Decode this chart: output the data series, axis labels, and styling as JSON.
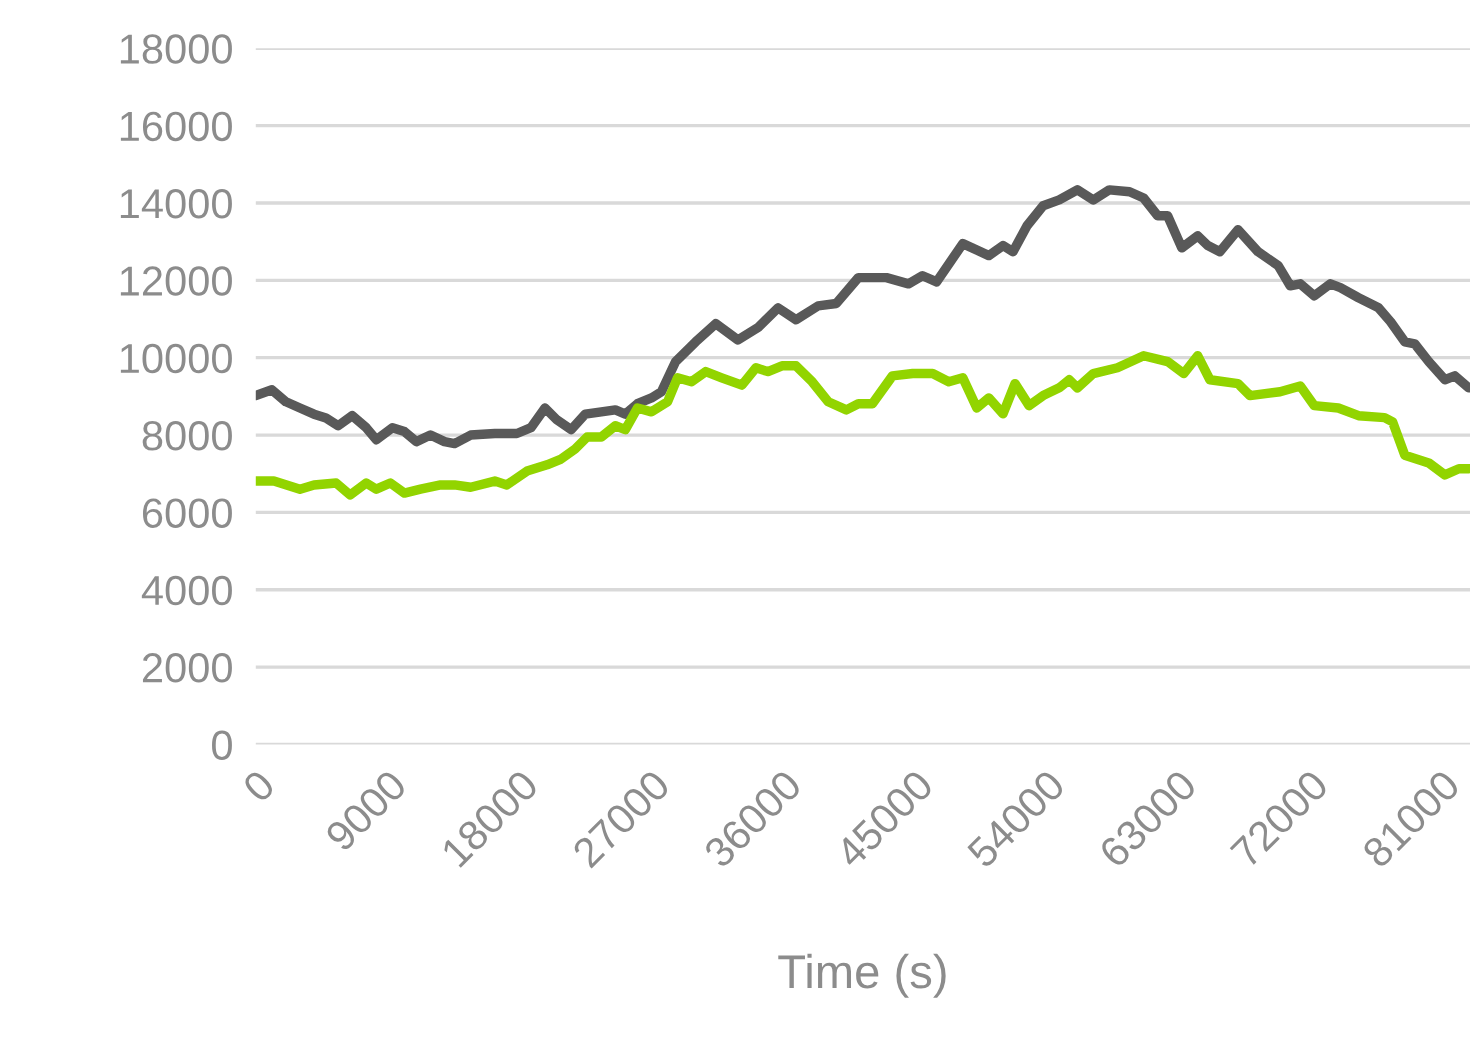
{
  "chart_data": {
    "type": "line",
    "xlabel": "Time (s)",
    "xlim": [
      0,
      83000
    ],
    "xticks": [
      0,
      9000,
      18000,
      27000,
      36000,
      45000,
      54000,
      63000,
      72000,
      81000
    ],
    "ylim": [
      0,
      18000
    ],
    "yticks": [
      0,
      2000,
      4000,
      6000,
      8000,
      10000,
      12000,
      14000,
      16000,
      18000
    ],
    "grid": "y",
    "marker": "none",
    "line_style": "solid",
    "series": [
      {
        "color": "#595959",
        "x": [
          0,
          1100,
          2060,
          3020,
          3980,
          4800,
          5630,
          6590,
          7550,
          8240,
          9340,
          10160,
          10980,
          11940,
          12900,
          13590,
          14690,
          16340,
          17850,
          18810,
          19770,
          20590,
          21560,
          22520,
          23620,
          24580,
          25260,
          26090,
          27050,
          27730,
          28700,
          30070,
          31440,
          32950,
          34330,
          35700,
          36930,
          38440,
          39680,
          41190,
          43110,
          44620,
          45580,
          46540,
          48330,
          50110,
          51080,
          51760,
          52720,
          53820,
          54920,
          56160,
          57250,
          58350,
          59730,
          60690,
          61650,
          62330,
          63300,
          64390,
          65080,
          65900,
          67140,
          68510,
          69890,
          70710,
          71400,
          72360,
          73460,
          74140,
          75380,
          76750,
          77570,
          78540,
          79220,
          80180,
          81280,
          81960,
          82920
        ],
        "values": [
          9020,
          9170,
          8860,
          8700,
          8540,
          8440,
          8240,
          8500,
          8190,
          7880,
          8190,
          8090,
          7830,
          8000,
          7830,
          7780,
          8000,
          8040,
          8040,
          8190,
          8700,
          8390,
          8140,
          8540,
          8600,
          8650,
          8540,
          8810,
          8960,
          9120,
          9900,
          10410,
          10880,
          10460,
          10780,
          11290,
          10980,
          11340,
          11400,
          12070,
          12070,
          11910,
          12120,
          11960,
          12950,
          12640,
          12900,
          12740,
          13410,
          13930,
          14080,
          14340,
          14080,
          14340,
          14290,
          14130,
          13670,
          13670,
          12840,
          13150,
          12900,
          12740,
          13310,
          12740,
          12380,
          11860,
          11910,
          11600,
          11910,
          11810,
          11550,
          11290,
          10930,
          10410,
          10360,
          9900,
          9430,
          9530,
          9220
        ]
      },
      {
        "color": "#92d400",
        "x": [
          0,
          1240,
          3020,
          3980,
          5490,
          6450,
          7550,
          8240,
          9200,
          10160,
          11260,
          12630,
          13590,
          14690,
          16340,
          17160,
          18540,
          19910,
          20870,
          21830,
          22650,
          23620,
          24580,
          25260,
          26090,
          27050,
          28150,
          28830,
          29790,
          30760,
          31850,
          33230,
          34190,
          35010,
          35970,
          36930,
          38030,
          39130,
          40370,
          41190,
          42150,
          43520,
          44900,
          46270,
          47370,
          48330,
          49290,
          50110,
          51080,
          51900,
          52860,
          53820,
          54920,
          55610,
          56160,
          57250,
          58900,
          60690,
          62330,
          63430,
          64390,
          65220,
          67140,
          67960,
          70020,
          71400,
          72360,
          74000,
          75380,
          77160,
          77710,
          78540,
          80180,
          81280,
          82240,
          82920
        ],
        "values": [
          6810,
          6810,
          6600,
          6710,
          6760,
          6450,
          6760,
          6600,
          6760,
          6500,
          6600,
          6710,
          6710,
          6650,
          6810,
          6710,
          7070,
          7230,
          7380,
          7640,
          7950,
          7950,
          8240,
          8140,
          8700,
          8600,
          8860,
          9480,
          9380,
          9640,
          9480,
          9290,
          9740,
          9640,
          9790,
          9790,
          9380,
          8860,
          8650,
          8810,
          8810,
          9530,
          9590,
          9590,
          9380,
          9480,
          8700,
          8960,
          8550,
          9330,
          8760,
          9020,
          9220,
          9430,
          9220,
          9590,
          9740,
          10050,
          9900,
          9590,
          10050,
          9430,
          9330,
          9020,
          9120,
          9270,
          8760,
          8700,
          8500,
          8450,
          8340,
          7480,
          7280,
          6970,
          7130,
          7130
        ]
      }
    ]
  }
}
